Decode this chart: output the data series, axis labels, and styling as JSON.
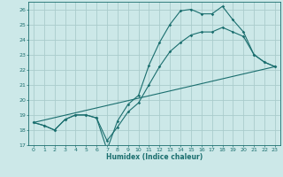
{
  "xlabel": "Humidex (Indice chaleur)",
  "bg_color": "#cce8e8",
  "grid_color": "#aacccc",
  "line_color": "#1a6e6e",
  "xlim": [
    -0.5,
    23.5
  ],
  "ylim": [
    17,
    26.5
  ],
  "yticks": [
    17,
    18,
    19,
    20,
    21,
    22,
    23,
    24,
    25,
    26
  ],
  "xticks": [
    0,
    1,
    2,
    3,
    4,
    5,
    6,
    7,
    8,
    9,
    10,
    11,
    12,
    13,
    14,
    15,
    16,
    17,
    18,
    19,
    20,
    21,
    22,
    23
  ],
  "line1_x": [
    0,
    1,
    2,
    3,
    4,
    5,
    6,
    7,
    8,
    9,
    10,
    11,
    12,
    13,
    14,
    15,
    16,
    17,
    18,
    19,
    20,
    21,
    22,
    23
  ],
  "line1_y": [
    18.5,
    18.3,
    18.0,
    18.7,
    19.0,
    19.0,
    18.8,
    16.7,
    18.6,
    19.7,
    20.3,
    22.3,
    23.8,
    25.0,
    25.9,
    26.0,
    25.7,
    25.7,
    26.2,
    25.3,
    24.5,
    23.0,
    22.5,
    22.2
  ],
  "line2_x": [
    0,
    1,
    2,
    3,
    4,
    5,
    6,
    7,
    8,
    9,
    10,
    11,
    12,
    13,
    14,
    15,
    16,
    17,
    18,
    19,
    20,
    21,
    22,
    23
  ],
  "line2_y": [
    18.5,
    18.3,
    18.0,
    18.7,
    19.0,
    19.0,
    18.8,
    17.3,
    18.2,
    19.2,
    19.8,
    21.0,
    22.2,
    23.2,
    23.8,
    24.3,
    24.5,
    24.5,
    24.8,
    24.5,
    24.2,
    23.0,
    22.5,
    22.2
  ],
  "line3_x": [
    0,
    23
  ],
  "line3_y": [
    18.5,
    22.2
  ]
}
